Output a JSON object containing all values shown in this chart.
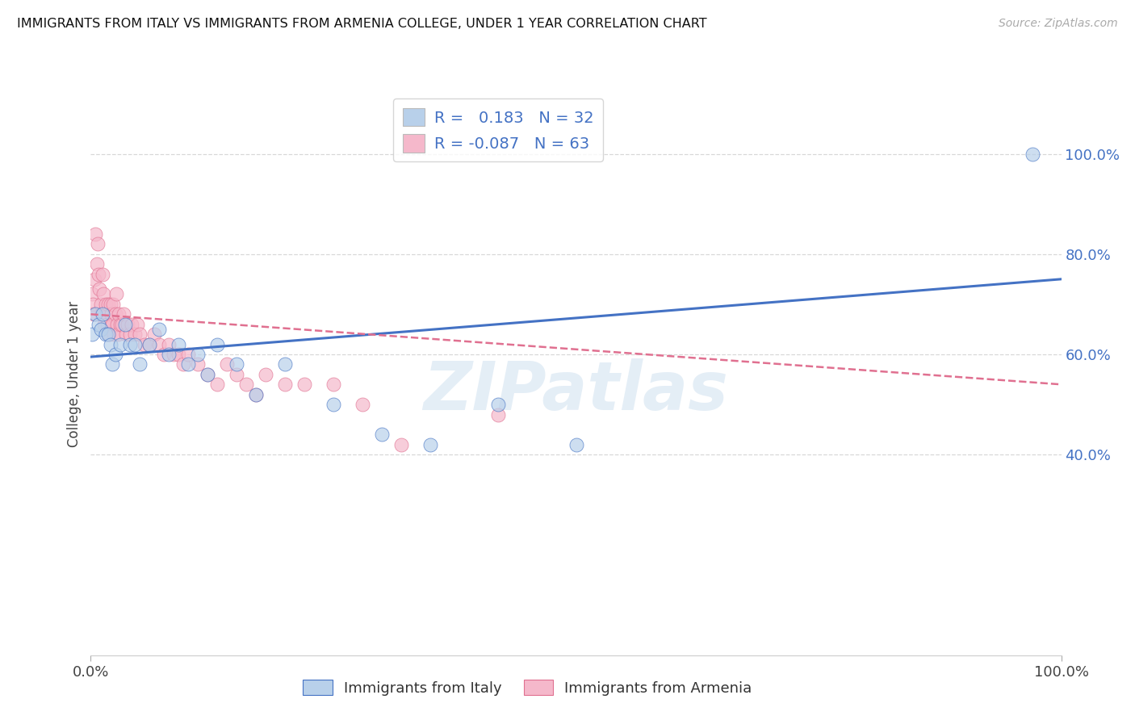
{
  "title": "IMMIGRANTS FROM ITALY VS IMMIGRANTS FROM ARMENIA COLLEGE, UNDER 1 YEAR CORRELATION CHART",
  "source": "Source: ZipAtlas.com",
  "ylabel": "College, Under 1 year",
  "legend_label_italy": "Immigrants from Italy",
  "legend_label_armenia": "Immigrants from Armenia",
  "italy_R": 0.183,
  "italy_N": 32,
  "armenia_R": -0.087,
  "armenia_N": 63,
  "watermark": "ZIPatlas",
  "color_italy_fill": "#b8d0ea",
  "color_armenia_fill": "#f5b8cb",
  "color_italy_line": "#4472c4",
  "color_armenia_line": "#e07090",
  "background": "#ffffff",
  "grid_color": "#d8d8d8",
  "italy_x": [
    0.001,
    0.005,
    0.008,
    0.01,
    0.012,
    0.015,
    0.018,
    0.02,
    0.022,
    0.025,
    0.03,
    0.035,
    0.04,
    0.045,
    0.05,
    0.06,
    0.07,
    0.08,
    0.09,
    0.1,
    0.11,
    0.12,
    0.13,
    0.15,
    0.17,
    0.2,
    0.25,
    0.3,
    0.35,
    0.42,
    0.5,
    0.97
  ],
  "italy_y": [
    0.64,
    0.68,
    0.66,
    0.65,
    0.68,
    0.64,
    0.64,
    0.62,
    0.58,
    0.6,
    0.62,
    0.66,
    0.62,
    0.62,
    0.58,
    0.62,
    0.65,
    0.6,
    0.62,
    0.58,
    0.6,
    0.56,
    0.62,
    0.58,
    0.52,
    0.58,
    0.5,
    0.44,
    0.42,
    0.5,
    0.42,
    1.0
  ],
  "armenia_x": [
    0.001,
    0.002,
    0.003,
    0.004,
    0.005,
    0.006,
    0.007,
    0.008,
    0.009,
    0.01,
    0.011,
    0.012,
    0.013,
    0.014,
    0.015,
    0.016,
    0.017,
    0.018,
    0.019,
    0.02,
    0.021,
    0.022,
    0.023,
    0.024,
    0.025,
    0.026,
    0.027,
    0.028,
    0.029,
    0.03,
    0.032,
    0.034,
    0.036,
    0.038,
    0.04,
    0.042,
    0.045,
    0.048,
    0.05,
    0.055,
    0.06,
    0.065,
    0.07,
    0.075,
    0.08,
    0.085,
    0.09,
    0.095,
    0.1,
    0.11,
    0.12,
    0.13,
    0.14,
    0.15,
    0.16,
    0.17,
    0.18,
    0.2,
    0.22,
    0.25,
    0.28,
    0.32,
    0.42
  ],
  "armenia_y": [
    0.72,
    0.7,
    0.68,
    0.75,
    0.84,
    0.78,
    0.82,
    0.76,
    0.73,
    0.7,
    0.68,
    0.76,
    0.72,
    0.66,
    0.7,
    0.68,
    0.66,
    0.7,
    0.64,
    0.7,
    0.68,
    0.66,
    0.7,
    0.64,
    0.68,
    0.72,
    0.66,
    0.64,
    0.68,
    0.66,
    0.66,
    0.68,
    0.64,
    0.66,
    0.64,
    0.66,
    0.64,
    0.66,
    0.64,
    0.62,
    0.62,
    0.64,
    0.62,
    0.6,
    0.62,
    0.6,
    0.6,
    0.58,
    0.6,
    0.58,
    0.56,
    0.54,
    0.58,
    0.56,
    0.54,
    0.52,
    0.56,
    0.54,
    0.54,
    0.54,
    0.5,
    0.42,
    0.48
  ],
  "italy_line_x0": 0.0,
  "italy_line_y0": 0.595,
  "italy_line_x1": 1.0,
  "italy_line_y1": 0.75,
  "armenia_line_x0": 0.0,
  "armenia_line_y0": 0.68,
  "armenia_line_x1": 1.0,
  "armenia_line_y1": 0.54,
  "right_yticks": [
    0.4,
    0.6,
    0.8,
    1.0
  ],
  "right_yticklabels": [
    "40.0%",
    "60.0%",
    "80.0%",
    "100.0%"
  ],
  "xticks": [
    0.0,
    1.0
  ],
  "xticklabels": [
    "0.0%",
    "100.0%"
  ],
  "ylim": [
    0.0,
    1.12
  ],
  "xlim": [
    0.0,
    1.0
  ]
}
